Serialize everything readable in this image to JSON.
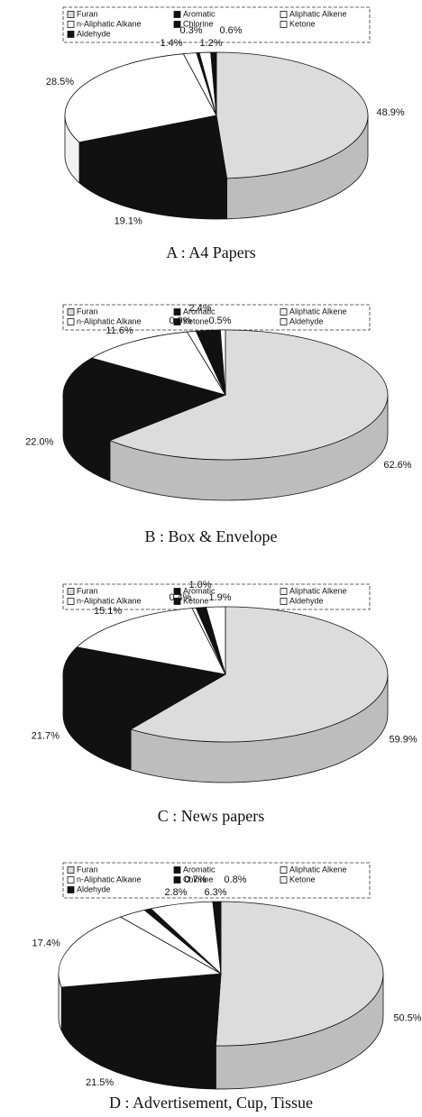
{
  "chart_data": [
    {
      "type": "pie",
      "caption": "A : A4 Papers",
      "categories": [
        "Furan",
        "Aromatic",
        "Aliphatic Alkene",
        "n-Aliphatic Alkane",
        "Chlorine",
        "Ketone",
        "Aldehyde"
      ],
      "values": [
        48.9,
        19.1,
        28.5,
        1.4,
        0.3,
        1.2,
        0.6
      ],
      "value_labels": [
        "48.9%",
        "19.1%",
        "28.5%",
        "1.4%",
        "0.3%",
        "1.2%",
        "0.6%"
      ],
      "colors": [
        "#dcdcdc",
        "#111111",
        "#ffffff",
        "#ffffff",
        "#111111",
        "#ffffff",
        "#111111"
      ]
    },
    {
      "type": "pie",
      "caption": "B : Box & Envelope",
      "categories": [
        "Furan",
        "Aromatic",
        "Aliphatic Alkene",
        "n-Aliphatic Alkane",
        "Ketone",
        "Aldehyde"
      ],
      "values": [
        62.6,
        22.0,
        11.6,
        0.9,
        2.4,
        0.5
      ],
      "value_labels": [
        "62.6%",
        "22.0%",
        "11.6%",
        "0.9%",
        "2.4%",
        "0.5%"
      ],
      "colors": [
        "#dcdcdc",
        "#111111",
        "#ffffff",
        "#ffffff",
        "#111111",
        "#ffffff"
      ]
    },
    {
      "type": "pie",
      "caption": "C : News papers",
      "categories": [
        "Furan",
        "Aromatic",
        "Aliphatic Alkene",
        "n-Aliphatic Alkane",
        "Ketone",
        "Aldehyde"
      ],
      "values": [
        59.9,
        21.7,
        15.1,
        0.4,
        1.0,
        1.9
      ],
      "value_labels": [
        "59.9%",
        "21.7%",
        "15.1%",
        "0.4%",
        "1.0%",
        "1.9%"
      ],
      "colors": [
        "#dcdcdc",
        "#111111",
        "#ffffff",
        "#ffffff",
        "#111111",
        "#ffffff"
      ]
    },
    {
      "type": "pie",
      "caption": "D : Advertisement, Cup, Tissue",
      "categories": [
        "Furan",
        "Aromatic",
        "Aliphatic Alkene",
        "n-Aliphatic Alkane",
        "Chlorine",
        "Ketone",
        "Aldehyde"
      ],
      "values": [
        50.5,
        21.5,
        17.4,
        2.8,
        0.7,
        6.3,
        0.8
      ],
      "value_labels": [
        "50.5%",
        "21.5%",
        "17.4%",
        "2.8%",
        "0.7%",
        "6.3%",
        "0.8%"
      ],
      "colors": [
        "#dcdcdc",
        "#111111",
        "#ffffff",
        "#ffffff",
        "#111111",
        "#ffffff",
        "#111111"
      ]
    }
  ]
}
